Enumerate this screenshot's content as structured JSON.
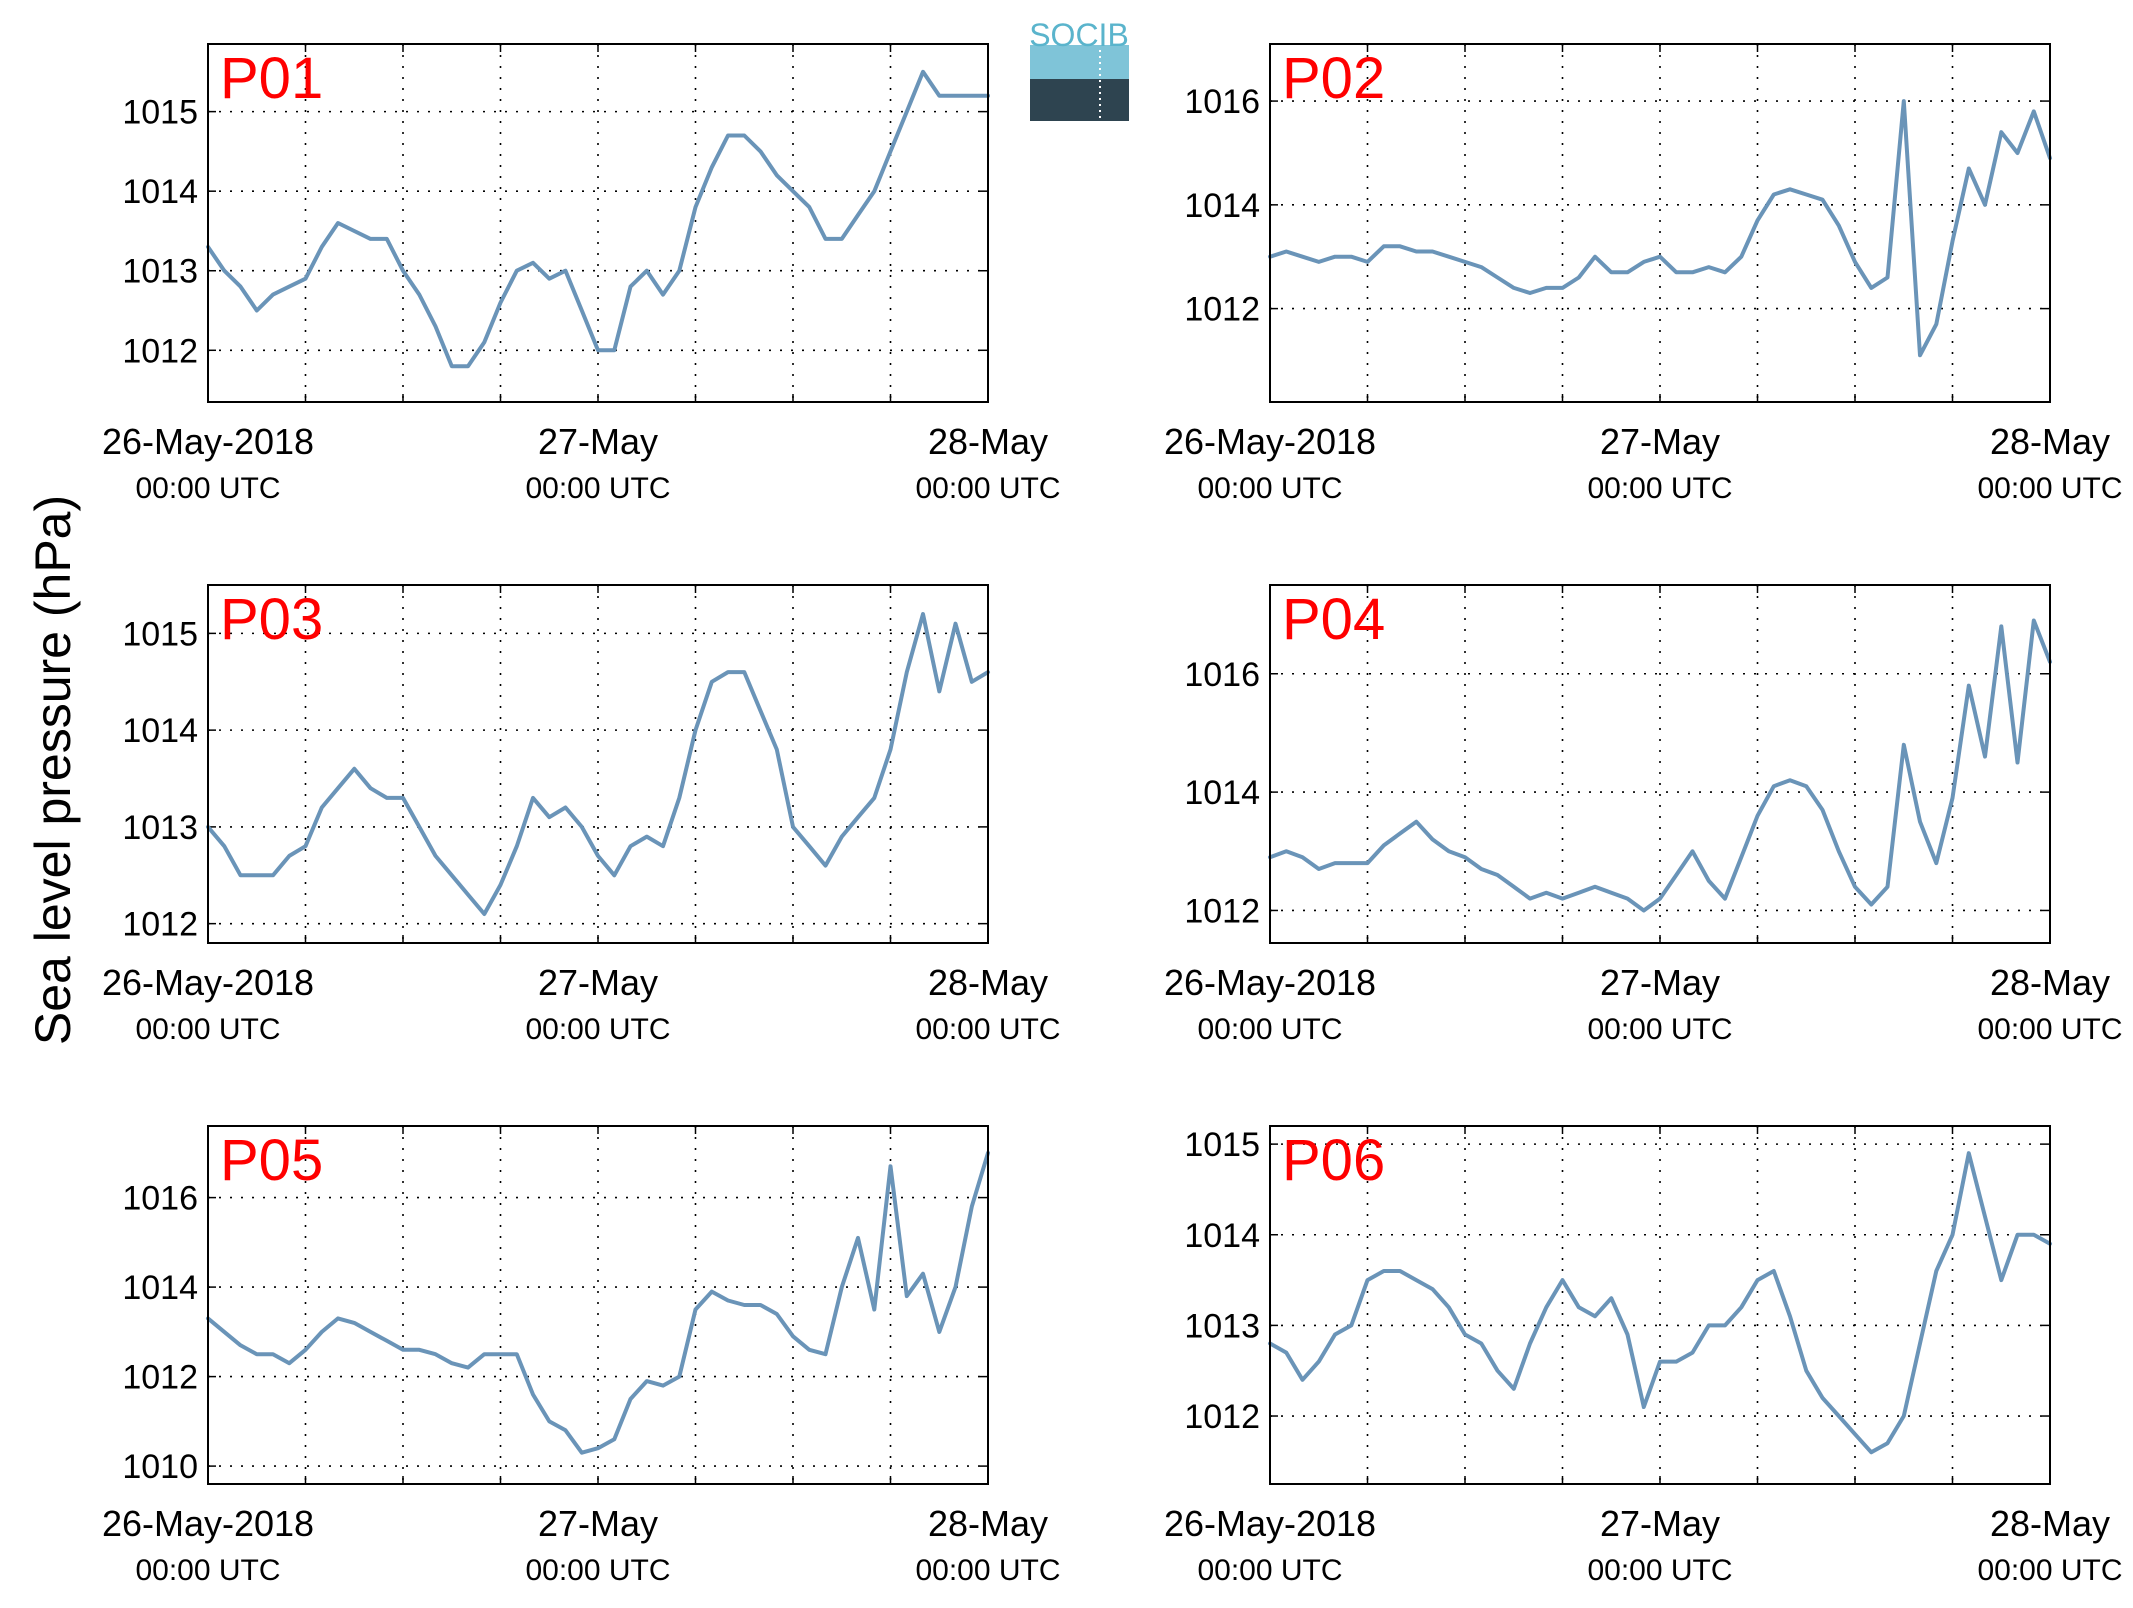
{
  "figure": {
    "ylabel": "Sea level pressure (hPa)",
    "logo_text": "SOCIB",
    "line_color": "#6a94b8",
    "label_color": "#ff0000"
  },
  "chart_data": [
    {
      "type": "line",
      "title": "P01",
      "xlabel": "",
      "ylabel": "",
      "xlim": [
        "2018-05-26 00:00",
        "2018-05-28 00:00"
      ],
      "ylim": [
        1011.35,
        1015.85
      ],
      "grid": true,
      "x_tick_labels": [
        [
          "26-May-2018",
          "00:00 UTC"
        ],
        [
          "27-May",
          "00:00 UTC"
        ],
        [
          "28-May",
          "00:00 UTC"
        ]
      ],
      "yticks": [
        1012,
        1013,
        1014,
        1015
      ],
      "series": [
        {
          "x": [
            "2018-05-26 00:00",
            "2018-05-26 01:00",
            "2018-05-26 02:00",
            "2018-05-26 03:00",
            "2018-05-26 04:00",
            "2018-05-26 05:00",
            "2018-05-26 06:00",
            "2018-05-26 07:00",
            "2018-05-26 08:00",
            "2018-05-26 09:00",
            "2018-05-26 10:00",
            "2018-05-26 11:00",
            "2018-05-26 12:00",
            "2018-05-26 13:00",
            "2018-05-26 14:00",
            "2018-05-26 15:00",
            "2018-05-26 16:00",
            "2018-05-26 17:00",
            "2018-05-26 18:00",
            "2018-05-26 19:00",
            "2018-05-26 20:00",
            "2018-05-26 21:00",
            "2018-05-26 22:00",
            "2018-05-26 23:00",
            "2018-05-27 00:00",
            "2018-05-27 01:00",
            "2018-05-27 02:00",
            "2018-05-27 03:00",
            "2018-05-27 04:00",
            "2018-05-27 05:00",
            "2018-05-27 06:00",
            "2018-05-27 07:00",
            "2018-05-27 08:00",
            "2018-05-27 09:00",
            "2018-05-27 10:00",
            "2018-05-27 11:00",
            "2018-05-27 12:00",
            "2018-05-27 13:00",
            "2018-05-27 14:00",
            "2018-05-27 15:00",
            "2018-05-27 16:00",
            "2018-05-27 17:00",
            "2018-05-27 18:00",
            "2018-05-27 19:00",
            "2018-05-27 20:00",
            "2018-05-27 21:00",
            "2018-05-27 22:00",
            "2018-05-27 23:00",
            "2018-05-28 00:00"
          ],
          "y": [
            1013.3,
            1013.0,
            1012.8,
            1012.5,
            1012.7,
            1012.8,
            1012.9,
            1013.3,
            1013.6,
            1013.5,
            1013.4,
            1013.4,
            1013.0,
            1012.7,
            1012.3,
            1011.8,
            1011.8,
            1012.1,
            1012.6,
            1013.0,
            1013.1,
            1012.9,
            1013.0,
            1012.5,
            1012.0,
            1012.0,
            1012.8,
            1013.0,
            1012.7,
            1013.0,
            1013.8,
            1014.3,
            1014.7,
            1014.7,
            1014.5,
            1014.2,
            1014.0,
            1013.8,
            1013.4,
            1013.4,
            1013.7,
            1014.0,
            1014.5,
            1015.0,
            1015.5,
            1015.2,
            1015.2,
            1015.2,
            1015.2
          ]
        }
      ]
    },
    {
      "type": "line",
      "title": "P02",
      "xlabel": "",
      "ylabel": "",
      "xlim": [
        "2018-05-26 00:00",
        "2018-05-28 00:00"
      ],
      "ylim": [
        1010.2,
        1017.1
      ],
      "grid": true,
      "x_tick_labels": [
        [
          "26-May-2018",
          "00:00 UTC"
        ],
        [
          "27-May",
          "00:00 UTC"
        ],
        [
          "28-May",
          "00:00 UTC"
        ]
      ],
      "yticks": [
        1012,
        1014,
        1016
      ],
      "series": [
        {
          "x": [
            "2018-05-26 00:00",
            "2018-05-26 01:00",
            "2018-05-26 02:00",
            "2018-05-26 03:00",
            "2018-05-26 04:00",
            "2018-05-26 05:00",
            "2018-05-26 06:00",
            "2018-05-26 07:00",
            "2018-05-26 08:00",
            "2018-05-26 09:00",
            "2018-05-26 10:00",
            "2018-05-26 11:00",
            "2018-05-26 12:00",
            "2018-05-26 13:00",
            "2018-05-26 14:00",
            "2018-05-26 15:00",
            "2018-05-26 16:00",
            "2018-05-26 17:00",
            "2018-05-26 18:00",
            "2018-05-26 19:00",
            "2018-05-26 20:00",
            "2018-05-26 21:00",
            "2018-05-26 22:00",
            "2018-05-26 23:00",
            "2018-05-27 00:00",
            "2018-05-27 01:00",
            "2018-05-27 02:00",
            "2018-05-27 03:00",
            "2018-05-27 04:00",
            "2018-05-27 05:00",
            "2018-05-27 06:00",
            "2018-05-27 07:00",
            "2018-05-27 08:00",
            "2018-05-27 09:00",
            "2018-05-27 10:00",
            "2018-05-27 11:00",
            "2018-05-27 12:00",
            "2018-05-27 13:00",
            "2018-05-27 14:00",
            "2018-05-27 15:00",
            "2018-05-27 16:00",
            "2018-05-27 17:00",
            "2018-05-27 18:00",
            "2018-05-27 19:00",
            "2018-05-27 20:00",
            "2018-05-27 21:00",
            "2018-05-27 22:00",
            "2018-05-27 23:00",
            "2018-05-28 00:00"
          ],
          "y": [
            1013.0,
            1013.1,
            1013.0,
            1012.9,
            1013.0,
            1013.0,
            1012.9,
            1013.2,
            1013.2,
            1013.1,
            1013.1,
            1013.0,
            1012.9,
            1012.8,
            1012.6,
            1012.4,
            1012.3,
            1012.4,
            1012.4,
            1012.6,
            1013.0,
            1012.7,
            1012.7,
            1012.9,
            1013.0,
            1012.7,
            1012.7,
            1012.8,
            1012.7,
            1013.0,
            1013.7,
            1014.2,
            1014.3,
            1014.2,
            1014.1,
            1013.6,
            1012.9,
            1012.4,
            1012.6,
            1016.0,
            1011.1,
            1011.7,
            1013.3,
            1014.7,
            1014.0,
            1015.4,
            1015.0,
            1015.8,
            1014.9
          ]
        }
      ]
    },
    {
      "type": "line",
      "title": "P03",
      "xlabel": "",
      "ylabel": "",
      "xlim": [
        "2018-05-26 00:00",
        "2018-05-28 00:00"
      ],
      "ylim": [
        1011.8,
        1015.5
      ],
      "grid": true,
      "x_tick_labels": [
        [
          "26-May-2018",
          "00:00 UTC"
        ],
        [
          "27-May",
          "00:00 UTC"
        ],
        [
          "28-May",
          "00:00 UTC"
        ]
      ],
      "yticks": [
        1012,
        1013,
        1014,
        1015
      ],
      "series": [
        {
          "x": [
            "2018-05-26 00:00",
            "2018-05-26 01:00",
            "2018-05-26 02:00",
            "2018-05-26 03:00",
            "2018-05-26 04:00",
            "2018-05-26 05:00",
            "2018-05-26 06:00",
            "2018-05-26 07:00",
            "2018-05-26 08:00",
            "2018-05-26 09:00",
            "2018-05-26 10:00",
            "2018-05-26 11:00",
            "2018-05-26 12:00",
            "2018-05-26 13:00",
            "2018-05-26 14:00",
            "2018-05-26 15:00",
            "2018-05-26 16:00",
            "2018-05-26 17:00",
            "2018-05-26 18:00",
            "2018-05-26 19:00",
            "2018-05-26 20:00",
            "2018-05-26 21:00",
            "2018-05-26 22:00",
            "2018-05-26 23:00",
            "2018-05-27 00:00",
            "2018-05-27 01:00",
            "2018-05-27 02:00",
            "2018-05-27 03:00",
            "2018-05-27 04:00",
            "2018-05-27 05:00",
            "2018-05-27 06:00",
            "2018-05-27 07:00",
            "2018-05-27 08:00",
            "2018-05-27 09:00",
            "2018-05-27 10:00",
            "2018-05-27 11:00",
            "2018-05-27 12:00",
            "2018-05-27 13:00",
            "2018-05-27 14:00",
            "2018-05-27 15:00",
            "2018-05-27 16:00",
            "2018-05-27 17:00",
            "2018-05-27 18:00",
            "2018-05-27 19:00",
            "2018-05-27 20:00",
            "2018-05-27 21:00",
            "2018-05-27 22:00",
            "2018-05-27 23:00",
            "2018-05-28 00:00"
          ],
          "y": [
            1013.0,
            1012.8,
            1012.5,
            1012.5,
            1012.5,
            1012.7,
            1012.8,
            1013.2,
            1013.4,
            1013.6,
            1013.4,
            1013.3,
            1013.3,
            1013.0,
            1012.7,
            1012.5,
            1012.3,
            1012.1,
            1012.4,
            1012.8,
            1013.3,
            1013.1,
            1013.2,
            1013.0,
            1012.7,
            1012.5,
            1012.8,
            1012.9,
            1012.8,
            1013.3,
            1014.0,
            1014.5,
            1014.6,
            1014.6,
            1014.2,
            1013.8,
            1013.0,
            1012.8,
            1012.6,
            1012.9,
            1013.1,
            1013.3,
            1013.8,
            1014.6,
            1015.2,
            1014.4,
            1015.1,
            1014.5,
            1014.6
          ]
        }
      ]
    },
    {
      "type": "line",
      "title": "P04",
      "xlabel": "",
      "ylabel": "",
      "xlim": [
        "2018-05-26 00:00",
        "2018-05-28 00:00"
      ],
      "ylim": [
        1011.45,
        1017.5
      ],
      "grid": true,
      "x_tick_labels": [
        [
          "26-May-2018",
          "00:00 UTC"
        ],
        [
          "27-May",
          "00:00 UTC"
        ],
        [
          "28-May",
          "00:00 UTC"
        ]
      ],
      "yticks": [
        1012,
        1014,
        1016
      ],
      "series": [
        {
          "x": [
            "2018-05-26 00:00",
            "2018-05-26 01:00",
            "2018-05-26 02:00",
            "2018-05-26 03:00",
            "2018-05-26 04:00",
            "2018-05-26 05:00",
            "2018-05-26 06:00",
            "2018-05-26 07:00",
            "2018-05-26 08:00",
            "2018-05-26 09:00",
            "2018-05-26 10:00",
            "2018-05-26 11:00",
            "2018-05-26 12:00",
            "2018-05-26 13:00",
            "2018-05-26 14:00",
            "2018-05-26 15:00",
            "2018-05-26 16:00",
            "2018-05-26 17:00",
            "2018-05-26 18:00",
            "2018-05-26 19:00",
            "2018-05-26 20:00",
            "2018-05-26 21:00",
            "2018-05-26 22:00",
            "2018-05-26 23:00",
            "2018-05-27 00:00",
            "2018-05-27 01:00",
            "2018-05-27 02:00",
            "2018-05-27 03:00",
            "2018-05-27 04:00",
            "2018-05-27 05:00",
            "2018-05-27 06:00",
            "2018-05-27 07:00",
            "2018-05-27 08:00",
            "2018-05-27 09:00",
            "2018-05-27 10:00",
            "2018-05-27 11:00",
            "2018-05-27 12:00",
            "2018-05-27 13:00",
            "2018-05-27 14:00",
            "2018-05-27 15:00",
            "2018-05-27 16:00",
            "2018-05-27 17:00",
            "2018-05-27 18:00",
            "2018-05-27 19:00",
            "2018-05-27 20:00",
            "2018-05-27 21:00",
            "2018-05-27 22:00",
            "2018-05-27 23:00",
            "2018-05-28 00:00"
          ],
          "y": [
            1012.9,
            1013.0,
            1012.9,
            1012.7,
            1012.8,
            1012.8,
            1012.8,
            1013.1,
            1013.3,
            1013.5,
            1013.2,
            1013.0,
            1012.9,
            1012.7,
            1012.6,
            1012.4,
            1012.2,
            1012.3,
            1012.2,
            1012.3,
            1012.4,
            1012.3,
            1012.2,
            1012.0,
            1012.2,
            1012.6,
            1013.0,
            1012.5,
            1012.2,
            1012.9,
            1013.6,
            1014.1,
            1014.2,
            1014.1,
            1013.7,
            1013.0,
            1012.4,
            1012.1,
            1012.4,
            1014.8,
            1013.5,
            1012.8,
            1013.9,
            1015.8,
            1014.6,
            1016.8,
            1014.5,
            1016.9,
            1016.2
          ]
        }
      ]
    },
    {
      "type": "line",
      "title": "P05",
      "xlabel": "",
      "ylabel": "",
      "xlim": [
        "2018-05-26 00:00",
        "2018-05-28 00:00"
      ],
      "ylim": [
        1009.6,
        1017.6
      ],
      "grid": true,
      "x_tick_labels": [
        [
          "26-May-2018",
          "00:00 UTC"
        ],
        [
          "27-May",
          "00:00 UTC"
        ],
        [
          "28-May",
          "00:00 UTC"
        ]
      ],
      "yticks": [
        1010,
        1012,
        1014,
        1016
      ],
      "series": [
        {
          "x": [
            "2018-05-26 00:00",
            "2018-05-26 01:00",
            "2018-05-26 02:00",
            "2018-05-26 03:00",
            "2018-05-26 04:00",
            "2018-05-26 05:00",
            "2018-05-26 06:00",
            "2018-05-26 07:00",
            "2018-05-26 08:00",
            "2018-05-26 09:00",
            "2018-05-26 10:00",
            "2018-05-26 11:00",
            "2018-05-26 12:00",
            "2018-05-26 13:00",
            "2018-05-26 14:00",
            "2018-05-26 15:00",
            "2018-05-26 16:00",
            "2018-05-26 17:00",
            "2018-05-26 18:00",
            "2018-05-26 19:00",
            "2018-05-26 20:00",
            "2018-05-26 21:00",
            "2018-05-26 22:00",
            "2018-05-26 23:00",
            "2018-05-27 00:00",
            "2018-05-27 01:00",
            "2018-05-27 02:00",
            "2018-05-27 03:00",
            "2018-05-27 04:00",
            "2018-05-27 05:00",
            "2018-05-27 06:00",
            "2018-05-27 07:00",
            "2018-05-27 08:00",
            "2018-05-27 09:00",
            "2018-05-27 10:00",
            "2018-05-27 11:00",
            "2018-05-27 12:00",
            "2018-05-27 13:00",
            "2018-05-27 14:00",
            "2018-05-27 15:00",
            "2018-05-27 16:00",
            "2018-05-27 17:00",
            "2018-05-27 18:00",
            "2018-05-27 19:00",
            "2018-05-27 20:00",
            "2018-05-27 21:00",
            "2018-05-27 22:00",
            "2018-05-27 23:00",
            "2018-05-28 00:00"
          ],
          "y": [
            1013.3,
            1013.0,
            1012.7,
            1012.5,
            1012.5,
            1012.3,
            1012.6,
            1013.0,
            1013.3,
            1013.2,
            1013.0,
            1012.8,
            1012.6,
            1012.6,
            1012.5,
            1012.3,
            1012.2,
            1012.5,
            1012.5,
            1012.5,
            1011.6,
            1011.0,
            1010.8,
            1010.3,
            1010.4,
            1010.6,
            1011.5,
            1011.9,
            1011.8,
            1012.0,
            1013.5,
            1013.9,
            1013.7,
            1013.6,
            1013.6,
            1013.4,
            1012.9,
            1012.6,
            1012.5,
            1014.0,
            1015.1,
            1013.5,
            1016.7,
            1013.8,
            1014.3,
            1013.0,
            1014.0,
            1015.8,
            1017.0
          ]
        }
      ]
    },
    {
      "type": "line",
      "title": "P06",
      "xlabel": "",
      "ylabel": "",
      "xlim": [
        "2018-05-26 00:00",
        "2018-05-28 00:00"
      ],
      "ylim": [
        1011.25,
        1015.2
      ],
      "grid": true,
      "x_tick_labels": [
        [
          "26-May-2018",
          "00:00 UTC"
        ],
        [
          "27-May",
          "00:00 UTC"
        ],
        [
          "28-May",
          "00:00 UTC"
        ]
      ],
      "yticks": [
        1012,
        1013,
        1014,
        1015
      ],
      "series": [
        {
          "x": [
            "2018-05-26 00:00",
            "2018-05-26 01:00",
            "2018-05-26 02:00",
            "2018-05-26 03:00",
            "2018-05-26 04:00",
            "2018-05-26 05:00",
            "2018-05-26 06:00",
            "2018-05-26 07:00",
            "2018-05-26 08:00",
            "2018-05-26 09:00",
            "2018-05-26 10:00",
            "2018-05-26 11:00",
            "2018-05-26 12:00",
            "2018-05-26 13:00",
            "2018-05-26 14:00",
            "2018-05-26 15:00",
            "2018-05-26 16:00",
            "2018-05-26 17:00",
            "2018-05-26 18:00",
            "2018-05-26 19:00",
            "2018-05-26 20:00",
            "2018-05-26 21:00",
            "2018-05-26 22:00",
            "2018-05-26 23:00",
            "2018-05-27 00:00",
            "2018-05-27 01:00",
            "2018-05-27 02:00",
            "2018-05-27 03:00",
            "2018-05-27 04:00",
            "2018-05-27 05:00",
            "2018-05-27 06:00",
            "2018-05-27 07:00",
            "2018-05-27 08:00",
            "2018-05-27 09:00",
            "2018-05-27 10:00",
            "2018-05-27 11:00",
            "2018-05-27 12:00",
            "2018-05-27 13:00",
            "2018-05-27 14:00",
            "2018-05-27 15:00",
            "2018-05-27 16:00",
            "2018-05-27 17:00",
            "2018-05-27 18:00",
            "2018-05-27 19:00",
            "2018-05-27 20:00",
            "2018-05-27 21:00",
            "2018-05-27 22:00",
            "2018-05-27 23:00",
            "2018-05-28 00:00"
          ],
          "y": [
            1012.8,
            1012.7,
            1012.4,
            1012.6,
            1012.9,
            1013.0,
            1013.5,
            1013.6,
            1013.6,
            1013.5,
            1013.4,
            1013.2,
            1012.9,
            1012.8,
            1012.5,
            1012.3,
            1012.8,
            1013.2,
            1013.5,
            1013.2,
            1013.1,
            1013.3,
            1012.9,
            1012.1,
            1012.6,
            1012.6,
            1012.7,
            1013.0,
            1013.0,
            1013.2,
            1013.5,
            1013.6,
            1013.1,
            1012.5,
            1012.2,
            1012.0,
            1011.8,
            1011.6,
            1011.7,
            1012.0,
            1012.8,
            1013.6,
            1014.0,
            1014.9,
            1014.2,
            1013.5,
            1014.0,
            1014.0,
            1013.9
          ]
        }
      ]
    }
  ]
}
